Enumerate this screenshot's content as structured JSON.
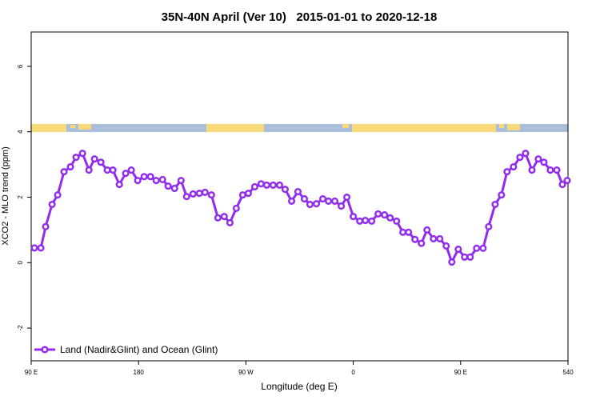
{
  "chart_data": {
    "type": "line",
    "title": "35N-40N April (Ver 10)   2015-01-01 to 2020-12-18",
    "x_label": "Longitude (deg E)",
    "y_label": "XCO2 - MLO trend (ppm)",
    "xlim": [
      90,
      540
    ],
    "xticks": [
      {
        "value": 90,
        "label": "90 E"
      },
      180,
      {
        "value": 270,
        "label": "90 W"
      },
      {
        "value": 360,
        "label": "0"
      },
      {
        "value": 450,
        "label": "90 E"
      },
      540
    ],
    "ylim": [
      -3,
      7.05
    ],
    "yticks": [
      -2,
      0,
      2,
      4,
      6
    ],
    "legend": "bottomleft",
    "x": [
      92.7,
      98.1,
      102.1,
      107.5,
      112.2,
      117.5,
      122.9,
      127.6,
      133.0,
      138.4,
      143.1,
      148.4,
      153.8,
      158.5,
      163.9,
      169.2,
      173.9,
      179.3,
      184.7,
      190.0,
      194.8,
      200.1,
      204.8,
      210.2,
      215.6,
      220.3,
      225.7,
      231.0,
      235.7,
      241.1,
      246.5,
      251.8,
      256.6,
      261.9,
      267.3,
      272.0,
      277.4,
      282.7,
      287.4,
      292.8,
      298.2,
      302.9,
      308.3,
      313.6,
      319.0,
      323.7,
      329.1,
      334.5,
      339.2,
      344.5,
      349.9,
      354.6,
      360.0,
      365.4,
      370.1,
      375.4,
      380.8,
      386.2,
      390.9,
      396.3,
      401.6,
      406.3,
      411.7,
      417.1,
      421.8,
      427.2,
      432.5,
      437.9,
      442.6,
      448.0,
      453.3,
      458.0,
      463.4,
      468.8,
      473.5,
      478.9,
      484.2,
      488.9,
      494.3,
      499.7,
      504.4,
      509.8,
      515.1,
      519.8,
      525.2,
      530.6,
      535.3,
      539.3
    ],
    "series": [
      {
        "name": "Land (Nadir&Glint) and Ocean (Glint)",
        "color": "#912cee",
        "values": [
          0.45,
          0.45,
          1.1,
          1.78,
          2.07,
          2.78,
          2.93,
          3.22,
          3.34,
          2.83,
          3.17,
          3.07,
          2.83,
          2.83,
          2.39,
          2.73,
          2.83,
          2.51,
          2.63,
          2.63,
          2.51,
          2.54,
          2.34,
          2.27,
          2.51,
          2.02,
          2.1,
          2.12,
          2.15,
          2.07,
          1.37,
          1.41,
          1.22,
          1.66,
          2.07,
          2.12,
          2.32,
          2.41,
          2.37,
          2.37,
          2.37,
          2.24,
          1.88,
          2.17,
          1.95,
          1.78,
          1.8,
          1.95,
          1.88,
          1.88,
          1.73,
          2.0,
          1.41,
          1.27,
          1.29,
          1.27,
          1.49,
          1.46,
          1.37,
          1.27,
          0.93,
          0.93,
          0.71,
          0.59,
          1.0,
          0.73,
          0.73,
          0.51,
          0.02,
          0.41,
          0.17,
          0.17,
          0.44,
          0.44,
          1.1,
          1.78,
          2.07,
          2.78,
          2.93,
          3.22,
          3.34,
          2.83,
          3.17,
          3.07,
          2.83,
          2.83,
          2.39,
          2.51
        ]
      }
    ]
  }
}
